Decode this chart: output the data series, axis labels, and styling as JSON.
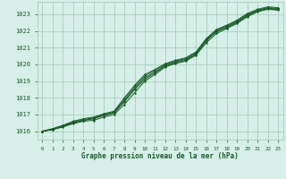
{
  "xlabel": "Graphe pression niveau de la mer (hPa)",
  "background_color": "#d6efe8",
  "grid_color": "#a0c8b8",
  "line_color": "#1a5c2a",
  "text_color": "#1a5c2a",
  "xlim": [
    -0.5,
    23.5
  ],
  "ylim": [
    1015.5,
    1023.75
  ],
  "yticks": [
    1016,
    1017,
    1018,
    1019,
    1020,
    1021,
    1022,
    1023
  ],
  "xticks": [
    0,
    1,
    2,
    3,
    4,
    5,
    6,
    7,
    8,
    9,
    10,
    11,
    12,
    13,
    14,
    15,
    16,
    17,
    18,
    19,
    20,
    21,
    22,
    23
  ],
  "series": [
    [
      1016.0,
      1016.1,
      1016.25,
      1016.45,
      1016.6,
      1016.65,
      1016.85,
      1017.0,
      1017.6,
      1018.3,
      1019.0,
      1019.4,
      1019.85,
      1020.05,
      1020.2,
      1020.55,
      1021.3,
      1021.85,
      1022.15,
      1022.45,
      1022.85,
      1023.15,
      1023.3,
      1023.25
    ],
    [
      1016.0,
      1016.1,
      1016.3,
      1016.5,
      1016.65,
      1016.75,
      1016.95,
      1017.1,
      1017.75,
      1018.5,
      1019.1,
      1019.5,
      1019.9,
      1020.1,
      1020.25,
      1020.6,
      1021.4,
      1021.95,
      1022.2,
      1022.5,
      1022.9,
      1023.2,
      1023.35,
      1023.3
    ],
    [
      1016.0,
      1016.1,
      1016.3,
      1016.5,
      1016.65,
      1016.75,
      1016.95,
      1017.1,
      1017.8,
      1018.55,
      1019.2,
      1019.55,
      1019.95,
      1020.15,
      1020.3,
      1020.65,
      1021.45,
      1022.0,
      1022.25,
      1022.55,
      1022.95,
      1023.2,
      1023.35,
      1023.3
    ],
    [
      1016.0,
      1016.15,
      1016.35,
      1016.55,
      1016.7,
      1016.8,
      1017.0,
      1017.15,
      1017.9,
      1018.65,
      1019.3,
      1019.65,
      1020.0,
      1020.2,
      1020.35,
      1020.7,
      1021.5,
      1022.05,
      1022.3,
      1022.6,
      1023.0,
      1023.25,
      1023.4,
      1023.35
    ],
    [
      1016.0,
      1016.15,
      1016.35,
      1016.6,
      1016.75,
      1016.85,
      1017.05,
      1017.2,
      1018.0,
      1018.75,
      1019.4,
      1019.7,
      1020.05,
      1020.25,
      1020.4,
      1020.75,
      1021.55,
      1022.1,
      1022.35,
      1022.65,
      1023.05,
      1023.3,
      1023.45,
      1023.4
    ]
  ]
}
